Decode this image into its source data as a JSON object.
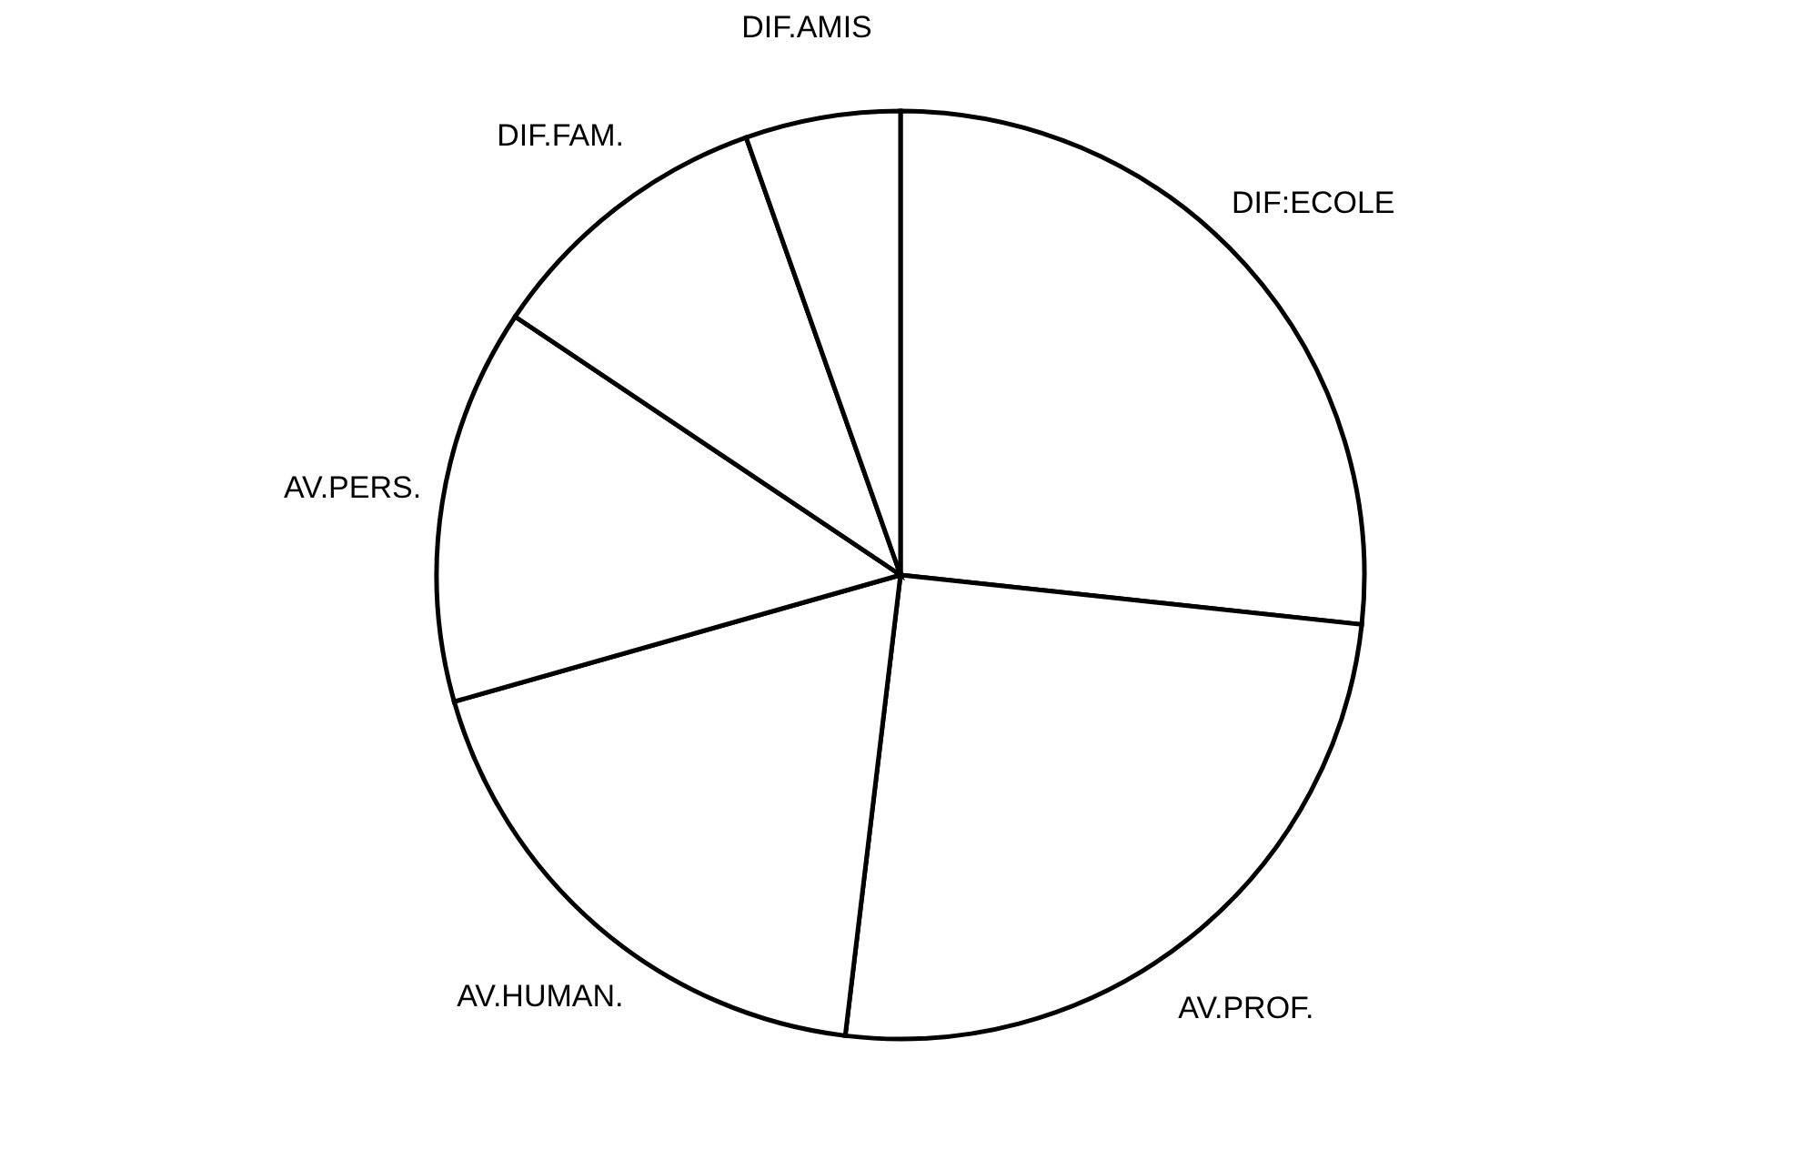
{
  "chart_data": {
    "type": "pie",
    "categories": [
      "DIF:ECOLE",
      "AV.PROF.",
      "AV.HUMAN.",
      "AV.PERS.",
      "DIF.FAM.",
      "DIF.AMIS"
    ],
    "values": [
      26.7,
      25.2,
      18.7,
      13.8,
      10.2,
      5.4
    ],
    "colors": [
      "#ffffff",
      "#ffffff",
      "#ffffff",
      "#ffffff",
      "#ffffff",
      "#ffffff"
    ]
  }
}
